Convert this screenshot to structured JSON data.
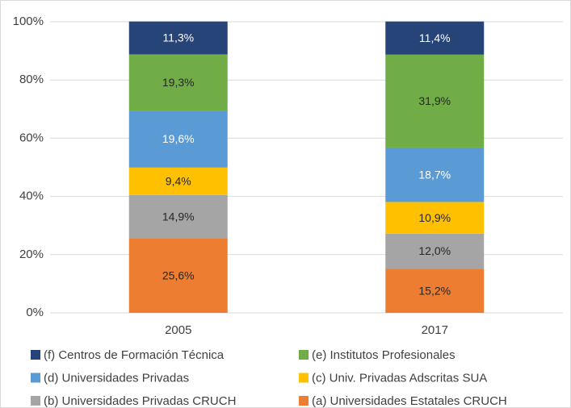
{
  "chart_data": {
    "type": "stacked_bar",
    "categories": [
      "2005",
      "2017"
    ],
    "series": [
      {
        "name": "(a) Universidades Estatales CRUCH",
        "color": "#ed7d31",
        "label_color": "#262626",
        "values": [
          25.6,
          15.2
        ],
        "value_labels": [
          "25,6%",
          "15,2%"
        ]
      },
      {
        "name": "(b) Universidades Privadas CRUCH",
        "color": "#a5a5a5",
        "label_color": "#262626",
        "values": [
          14.9,
          12.0
        ],
        "value_labels": [
          "14,9%",
          "12,0%"
        ]
      },
      {
        "name": "(c) Univ. Privadas Adscritas SUA",
        "color": "#ffc000",
        "label_color": "#262626",
        "values": [
          9.4,
          10.9
        ],
        "value_labels": [
          "9,4%",
          "10,9%"
        ]
      },
      {
        "name": "(d) Universidades Privadas",
        "color": "#5b9bd5",
        "label_color": "#ffffff",
        "values": [
          19.6,
          18.7
        ],
        "value_labels": [
          "19,6%",
          "18,7%"
        ]
      },
      {
        "name": "(e) Institutos Profesionales",
        "color": "#70ad47",
        "label_color": "#262626",
        "values": [
          19.3,
          31.9
        ],
        "value_labels": [
          "19,3%",
          "31,9%"
        ]
      },
      {
        "name": "(f) Centros de Formación Técnica",
        "color": "#264478",
        "label_color": "#ffffff",
        "values": [
          11.3,
          11.4
        ],
        "value_labels": [
          "11,3%",
          "11,4%"
        ]
      }
    ],
    "ylim": [
      0,
      100
    ],
    "yticks": [
      {
        "value": 0,
        "label": "0%"
      },
      {
        "value": 20,
        "label": "20%"
      },
      {
        "value": 40,
        "label": "40%"
      },
      {
        "value": 60,
        "label": "60%"
      },
      {
        "value": 80,
        "label": "80%"
      },
      {
        "value": 100,
        "label": "100%"
      }
    ],
    "grid": true
  }
}
